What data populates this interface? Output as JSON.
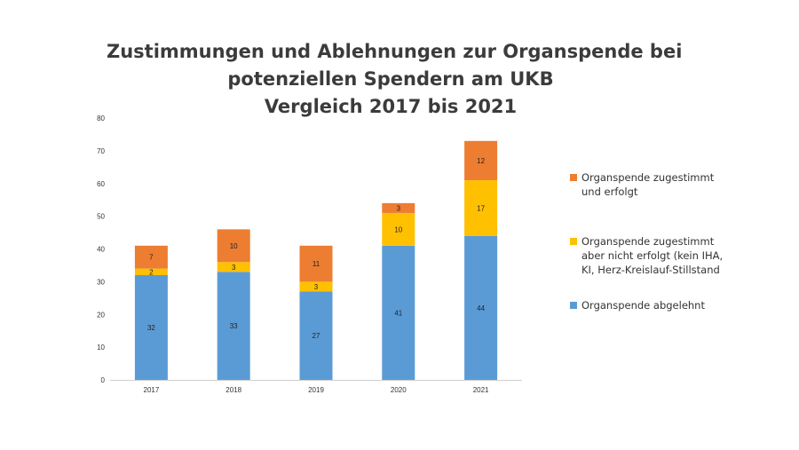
{
  "chart_data": {
    "type": "bar",
    "stacked": true,
    "title": [
      "Zustimmungen und Ablehnungen zur Organspende bei",
      "potenziellen Spendern am UKB",
      "Vergleich 2017 bis 2021"
    ],
    "categories": [
      "2017",
      "2018",
      "2019",
      "2020",
      "2021"
    ],
    "yticks": [
      "0",
      "10",
      "20",
      "30",
      "40",
      "50",
      "60",
      "70",
      "80"
    ],
    "ylim": [
      0,
      80
    ],
    "series": [
      {
        "name": "Organspende abgelehnt",
        "color": "#5b9bd5",
        "values": [
          32,
          33,
          27,
          41,
          44
        ]
      },
      {
        "name": "Organspende zugestimmt aber nicht erfolgt (kein IHA, KI, Herz-Kreislauf-Stillstand",
        "color": "#ffc000",
        "values": [
          2,
          3,
          3,
          10,
          17
        ]
      },
      {
        "name": "Organspende zugestimmt und erfolgt",
        "color": "#ed7d31",
        "values": [
          7,
          10,
          11,
          3,
          12
        ]
      }
    ],
    "legend": {
      "position": "right",
      "entries": [
        {
          "lines": [
            "Organspende zugestimmt",
            "und erfolgt"
          ],
          "color": "#ed7d31"
        },
        {
          "lines": [
            "Organspende zugestimmt",
            "aber nicht erfolgt (kein IHA,",
            "KI, Herz-Kreislauf-Stillstand"
          ],
          "color": "#ffc000"
        },
        {
          "lines": [
            "Organspende abgelehnt"
          ],
          "color": "#5b9bd5"
        }
      ]
    }
  }
}
